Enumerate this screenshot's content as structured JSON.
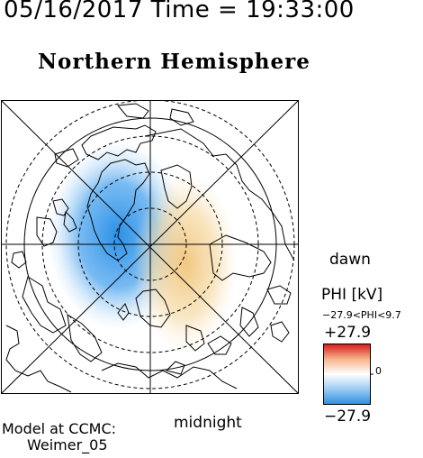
{
  "header": {
    "timestamp": "05/16/2017 Time = 19:33:00"
  },
  "map": {
    "title": "Northern Hemisphere",
    "projection": "polar stereographic",
    "coastlines": "black outline",
    "latitude_circles": "dashed",
    "dawn_label": "dawn",
    "midnight_label": "midnight"
  },
  "potential_field": {
    "quantity": "PHI",
    "negative_cell": "blue, dusk side",
    "positive_cell": "orange, dawn side"
  },
  "colorbar": {
    "title": "PHI [kV]",
    "range_text": "−27.9<PHI<9.7",
    "max_label": "+27.9",
    "min_label": "−27.9",
    "zero_label": "0",
    "colors": {
      "high": "#d7191c",
      "mid": "#ffffff",
      "low": "#2b8fe0"
    }
  },
  "footer": {
    "credit_line1": "Model at CCMC:",
    "credit_line2": "Weimer_05"
  }
}
